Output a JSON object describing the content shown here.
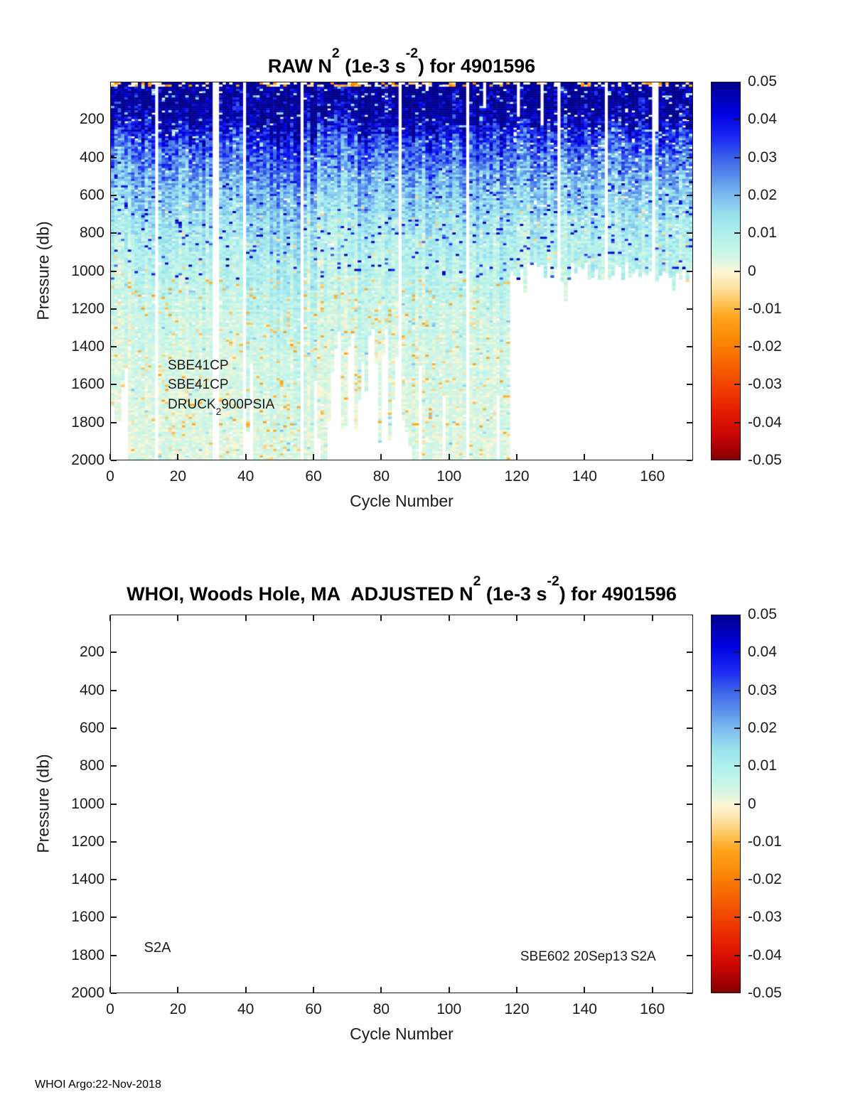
{
  "footer": "WHOI Argo:22-Nov-2018",
  "colormap_stops": [
    [
      -0.05,
      "#870101"
    ],
    [
      -0.044,
      "#c40404"
    ],
    [
      -0.038,
      "#e31a02"
    ],
    [
      -0.032,
      "#ef3a02"
    ],
    [
      -0.025,
      "#f66202"
    ],
    [
      -0.018,
      "#fb8a04"
    ],
    [
      -0.012,
      "#fda61e"
    ],
    [
      -0.008,
      "#fdc85e"
    ],
    [
      -0.004,
      "#fde4a8"
    ],
    [
      0,
      "#fdf6d8"
    ],
    [
      0.0015,
      "#e7f7da"
    ],
    [
      0.003,
      "#d8f5e2"
    ],
    [
      0.006,
      "#c5f5e9"
    ],
    [
      0.01,
      "#aff0ec"
    ],
    [
      0.015,
      "#97e0ee"
    ],
    [
      0.02,
      "#7dbcf0"
    ],
    [
      0.025,
      "#5a8fea"
    ],
    [
      0.03,
      "#3b63e8"
    ],
    [
      0.035,
      "#1e2cf5"
    ],
    [
      0.042,
      "#0000e0"
    ],
    [
      0.05,
      "#00008c"
    ]
  ],
  "chart_data": [
    {
      "type": "heatmap",
      "panel": "raw",
      "title": "RAW N2 (1e-3 s-2) for 4901596",
      "title_parts": {
        "p1": "RAW N",
        "s1": "2",
        "p2": " (1e-3 s",
        "s2": "-2",
        "p3": ") for 4901596"
      },
      "xlabel": "Cycle Number",
      "ylabel": "Pressure (db)",
      "xlim": [
        0,
        172
      ],
      "ylim": [
        0,
        2000
      ],
      "y_axis_down": true,
      "x_ticks": [
        0,
        20,
        40,
        60,
        80,
        100,
        120,
        140,
        160
      ],
      "y_ticks": [
        200,
        400,
        600,
        800,
        1000,
        1200,
        1400,
        1600,
        1800,
        2000
      ],
      "colorbar": {
        "min": -0.05,
        "max": 0.05,
        "ticks": [
          0.05,
          0.04,
          0.03,
          0.02,
          0.01,
          0,
          -0.01,
          -0.02,
          -0.03,
          -0.04,
          -0.05
        ],
        "tick_labels": [
          "0.05",
          "0.04",
          "0.03",
          "0.02",
          "0.01",
          "0",
          "-0.01",
          "-0.02",
          "-0.03",
          "-0.04",
          "-0.05"
        ]
      },
      "units": "1e-3 s^-2",
      "annotations": [
        {
          "parts": [
            {
              "t": "SBE41CP"
            }
          ],
          "cycle": 17,
          "pressure": 1505,
          "size": 19
        },
        {
          "parts": [
            {
              "t": "SBE41CP"
            }
          ],
          "cycle": 17,
          "pressure": 1608,
          "size": 19
        },
        {
          "parts": [
            {
              "t": "DRUCK"
            },
            {
              "t": "2",
              "sub": true
            },
            {
              "t": "900PSIA"
            }
          ],
          "cycle": 17,
          "pressure": 1712,
          "size": 19
        }
      ],
      "depth_profile_mean": [
        [
          0,
          0.05
        ],
        [
          100,
          0.0485
        ],
        [
          180,
          0.044
        ],
        [
          250,
          0.036
        ],
        [
          320,
          0.029
        ],
        [
          420,
          0.023
        ],
        [
          520,
          0.018
        ],
        [
          650,
          0.0135
        ],
        [
          800,
          0.01
        ],
        [
          950,
          0.0075
        ],
        [
          1100,
          0.0055
        ],
        [
          1300,
          0.004
        ],
        [
          1600,
          0.0028
        ],
        [
          2000,
          0.0022
        ]
      ],
      "heatmap_params": {
        "cycles": 172,
        "rows": 176,
        "seed": 20181122,
        "noise_base": 0.0032,
        "noise_surface": 0.016,
        "noise_decay_db": 420,
        "surface_band_db": 22,
        "missing_cycles": [
          13,
          30,
          31,
          39,
          56,
          85,
          105,
          132,
          146,
          160
        ],
        "right_block_start_cycle": 118,
        "right_block_end_pressure": [
          950,
          1060
        ],
        "mid_gap_cycles": [
          64,
          88
        ],
        "mid_gap_end_pressure": [
          1300,
          1950
        ],
        "left_edge_cycles": [
          0,
          4
        ],
        "left_edge_end_pressure": [
          1500,
          1980
        ],
        "random_early_end_prob": 0.09,
        "random_early_end_pressure": [
          1480,
          1980
        ],
        "top_missing_prob": 0.045,
        "deep_speckle_below_db": 1050
      },
      "coverage_note": "Profiles reach ~2000 db for cycles 0-118 (ragged gap near cycles 64-88 below ~1300-1900 db); cycles 118-172 end near 1000 db."
    },
    {
      "type": "heatmap",
      "panel": "adjusted",
      "title": "WHOI, Woods Hole, MA  ADJUSTED N2 (1e-3 s-2) for 4901596",
      "title_parts": {
        "p1": "WHOI, Woods Hole, MA  ADJUSTED N",
        "s1": "2",
        "p2": " (1e-3 s",
        "s2": "-2",
        "p3": ") for 4901596"
      },
      "xlabel": "Cycle Number",
      "ylabel": "Pressure (db)",
      "xlim": [
        0,
        172
      ],
      "ylim": [
        0,
        2000
      ],
      "y_axis_down": true,
      "x_ticks": [
        0,
        20,
        40,
        60,
        80,
        100,
        120,
        140,
        160
      ],
      "y_ticks": [
        200,
        400,
        600,
        800,
        1000,
        1200,
        1400,
        1600,
        1800,
        2000
      ],
      "colorbar": {
        "min": -0.05,
        "max": 0.05,
        "ticks": [
          0.05,
          0.04,
          0.03,
          0.02,
          0.01,
          0,
          -0.01,
          -0.02,
          -0.03,
          -0.04,
          -0.05
        ],
        "tick_labels": [
          "0.05",
          "0.04",
          "0.03",
          "0.02",
          "0.01",
          "0",
          "-0.01",
          "-0.02",
          "-0.03",
          "-0.04",
          "-0.05"
        ]
      },
      "units": "1e-3 s^-2",
      "values": "none",
      "annotations": [
        {
          "parts": [
            {
              "t": "S2A"
            }
          ],
          "cycle": 10,
          "pressure": 1768,
          "size": 20
        },
        {
          "parts": [
            {
              "t": "SBE602 20Sep13"
            }
          ],
          "cycle": 121,
          "pressure": 1812,
          "size": 19
        },
        {
          "parts": [
            {
              "t": "S2A"
            }
          ],
          "cycle": 153.5,
          "pressure": 1812,
          "size": 19
        }
      ]
    }
  ]
}
